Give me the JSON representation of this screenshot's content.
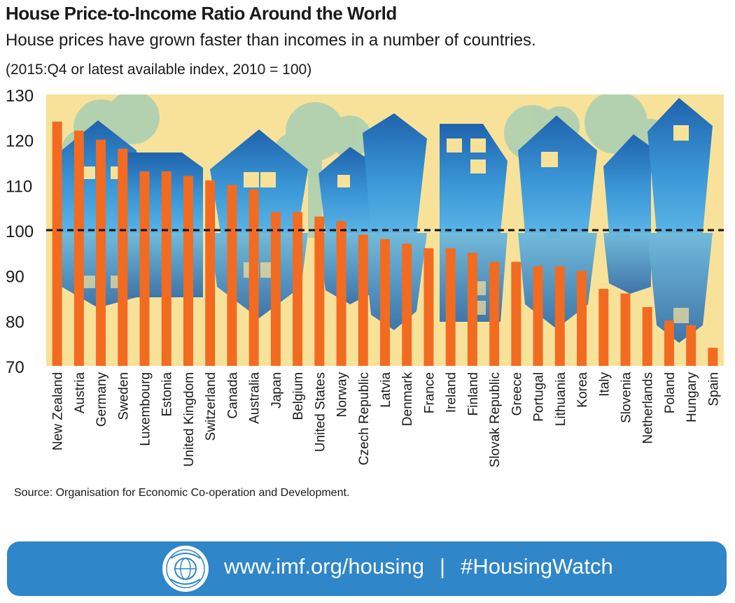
{
  "title": "House Price-to-Income Ratio Around the World",
  "subtitle": "House prices have grown faster than incomes in a number of countries.",
  "note": "(2015:Q4 or latest available index, 2010 = 100)",
  "source": "Source: Organisation for Economic Co-operation and Development.",
  "banner": {
    "url": "www.imf.org/housing",
    "separator": "|",
    "hashtag": "#HousingWatch",
    "seal_text": "INTERNATIONAL MONETARY FUND"
  },
  "colors": {
    "bar": "#f26b21",
    "background": "#f8e29a",
    "house_blue": "#2a78c0",
    "tree_green": "#a9cfb3",
    "banner": "#2f86c9"
  },
  "chart_data": {
    "type": "bar",
    "title": "House Price-to-Income Ratio Around the World",
    "xlabel": "",
    "ylabel": "",
    "ylim": [
      70,
      130
    ],
    "yticks": [
      70,
      80,
      90,
      100,
      110,
      120,
      130
    ],
    "reference_line": 100,
    "categories": [
      "New Zealand",
      "Austria",
      "Germany",
      "Sweden",
      "Luxembourg",
      "Estonia",
      "United Kingdom",
      "Switzerland",
      "Canada",
      "Australia",
      "Japan",
      "Belgium",
      "United States",
      "Norway",
      "Czech Republic",
      "Latvia",
      "Denmark",
      "France",
      "Ireland",
      "Finland",
      "Slovak Republic",
      "Greece",
      "Portugal",
      "Lithuania",
      "Korea",
      "Italy",
      "Slovenia",
      "Netherlands",
      "Poland",
      "Hungary",
      "Spain"
    ],
    "values": [
      124,
      122,
      120,
      118,
      113,
      113,
      112,
      111,
      110,
      109,
      104,
      104,
      103,
      102,
      99,
      98,
      97,
      96,
      96,
      95,
      93,
      93,
      92,
      92,
      91,
      87,
      86,
      83,
      80,
      79,
      74
    ]
  }
}
